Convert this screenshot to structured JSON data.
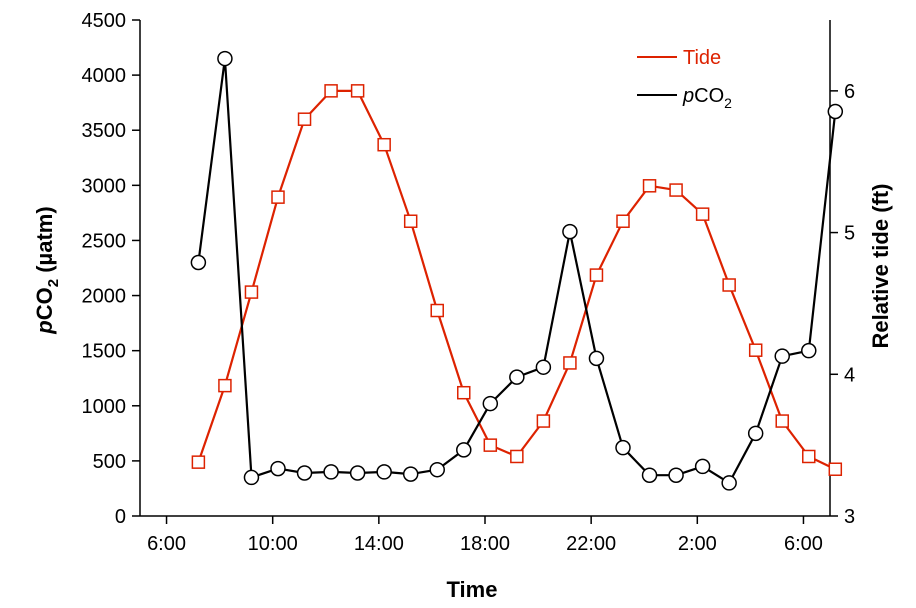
{
  "chart_data": {
    "type": "line",
    "xlabel": "Time",
    "ylabel_prefix": "p",
    "ylabel_main": "CO",
    "ylabel_sub": "2",
    "ylabel_suffix": " (µatm)",
    "y2label": "Relative tide (ft)",
    "xlim": [
      5,
      31
    ],
    "ylim": [
      0,
      4500
    ],
    "y2lim": [
      3,
      6.5
    ],
    "x_ticks": [
      6,
      10,
      14,
      18,
      22,
      26,
      30
    ],
    "x_tick_labels": [
      "6:00",
      "10:00",
      "14:00",
      "18:00",
      "22:00",
      "2:00",
      "6:00"
    ],
    "y_ticks": [
      0,
      500,
      1000,
      1500,
      2000,
      2500,
      3000,
      3500,
      4000,
      4500
    ],
    "y_tick_labels": [
      "0",
      "500",
      "1000",
      "1500",
      "2000",
      "2500",
      "3000",
      "3500",
      "4000",
      "4500"
    ],
    "y2_ticks": [
      3,
      4,
      5,
      6
    ],
    "y2_tick_labels": [
      "3",
      "4",
      "5",
      "6"
    ],
    "legend_position": "top-right",
    "series": [
      {
        "name": "Tide",
        "axis": "right",
        "color": "#dd2200",
        "marker": "square",
        "x": [
          7.2,
          8.2,
          9.2,
          10.2,
          11.2,
          12.2,
          13.2,
          14.2,
          15.2,
          16.2,
          17.2,
          18.2,
          19.2,
          20.2,
          21.2,
          22.2,
          23.2,
          24.2,
          25.2,
          26.2,
          27.2,
          28.2,
          29.2,
          30.2,
          31.2
        ],
        "y": [
          3.38,
          3.92,
          4.58,
          5.25,
          5.8,
          6.0,
          6.0,
          5.62,
          5.08,
          4.45,
          3.87,
          3.5,
          3.42,
          3.67,
          4.08,
          4.7,
          5.08,
          5.33,
          5.3,
          5.13,
          4.63,
          4.17,
          3.67,
          3.42,
          3.33
        ]
      },
      {
        "name_prefix": "p",
        "name_main": "CO",
        "name_sub": "2",
        "axis": "left",
        "color": "#000000",
        "marker": "circle",
        "x": [
          7.2,
          8.2,
          9.2,
          10.2,
          11.2,
          12.2,
          13.2,
          14.2,
          15.2,
          16.2,
          17.2,
          18.2,
          19.2,
          20.2,
          21.2,
          22.2,
          23.2,
          24.2,
          25.2,
          26.2,
          27.2,
          28.2,
          29.2,
          30.2,
          31.2
        ],
        "y": [
          2300,
          4150,
          350,
          430,
          390,
          400,
          390,
          400,
          380,
          420,
          600,
          1020,
          1260,
          1350,
          2580,
          1430,
          620,
          370,
          370,
          450,
          300,
          750,
          1450,
          1500,
          3670
        ]
      }
    ]
  }
}
